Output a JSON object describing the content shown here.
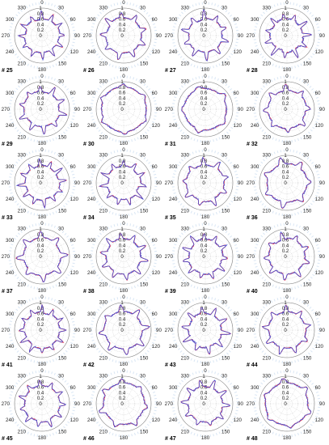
{
  "page": {
    "rows": 6,
    "cols": 4
  },
  "colors": {
    "series_1": "#e0304a",
    "series_2": "#3a4fd8",
    "grid": "#c8c8c8",
    "halo": "#c9dcef"
  },
  "chart_data": [
    {
      "type": "polar",
      "label": "# 25",
      "angle_ticks": [
        "0",
        "30",
        "60",
        "90",
        "120",
        "150",
        "180",
        "210",
        "240",
        "270",
        "300",
        "330"
      ],
      "r_ticks": [
        "1",
        "0.8",
        "0.6",
        "0.4",
        "0.2",
        "0"
      ],
      "rlim": [
        0,
        1
      ],
      "seed": 25,
      "lobes": 12,
      "base": 0.7,
      "amp": 0.24,
      "phase": 0.3
    },
    {
      "type": "polar",
      "label": "# 26",
      "angle_ticks": [
        "0",
        "30",
        "60",
        "90",
        "120",
        "150",
        "180",
        "210",
        "240",
        "270",
        "300",
        "330"
      ],
      "r_ticks": [
        "1",
        "0.8",
        "0.6",
        "0.4",
        "0.2",
        "0"
      ],
      "rlim": [
        0,
        1
      ],
      "seed": 26,
      "lobes": 9,
      "base": 0.72,
      "amp": 0.24,
      "phase": 1.1
    },
    {
      "type": "polar",
      "label": "# 27",
      "angle_ticks": [
        "0",
        "30",
        "60",
        "90",
        "120",
        "150",
        "180",
        "210",
        "240",
        "270",
        "300",
        "330"
      ],
      "r_ticks": [
        "1",
        "0.8",
        "0.6",
        "0.4",
        "0.2",
        "0"
      ],
      "rlim": [
        0,
        1
      ],
      "seed": 27,
      "lobes": 10,
      "base": 0.7,
      "amp": 0.26,
      "phase": 0.6
    },
    {
      "type": "polar",
      "label": "# 28",
      "angle_ticks": [
        "0",
        "30",
        "60",
        "90",
        "120",
        "150",
        "180",
        "210",
        "240",
        "270",
        "300",
        "330"
      ],
      "r_ticks": [
        "1",
        "0.8",
        "0.6",
        "0.4",
        "0.2",
        "0"
      ],
      "rlim": [
        0,
        1
      ],
      "seed": 28,
      "lobes": 11,
      "base": 0.68,
      "amp": 0.26,
      "phase": 2.0
    },
    {
      "type": "polar",
      "label": "# 29",
      "angle_ticks": [
        "0",
        "30",
        "60",
        "90",
        "120",
        "150",
        "180",
        "210",
        "240",
        "270",
        "300",
        "330"
      ],
      "r_ticks": [
        "1",
        "0.8",
        "0.6",
        "0.4",
        "0.2",
        "0"
      ],
      "rlim": [
        0,
        1
      ],
      "seed": 29,
      "lobes": 10,
      "base": 0.72,
      "amp": 0.22,
      "phase": 0.9
    },
    {
      "type": "polar",
      "label": "# 30",
      "angle_ticks": [
        "0",
        "30",
        "60",
        "90",
        "120",
        "150",
        "180",
        "210",
        "240",
        "270",
        "300",
        "330"
      ],
      "r_ticks": [
        "1",
        "0.8",
        "0.6",
        "0.4",
        "0.2",
        "0"
      ],
      "rlim": [
        0,
        1
      ],
      "seed": 30,
      "lobes": 6,
      "base": 0.85,
      "amp": 0.1,
      "phase": 0.2
    },
    {
      "type": "polar",
      "label": "# 31",
      "angle_ticks": [
        "0",
        "30",
        "60",
        "90",
        "120",
        "150",
        "180",
        "210",
        "240",
        "270",
        "300",
        "330"
      ],
      "r_ticks": [
        "1",
        "0.8",
        "0.6",
        "0.4",
        "0.2",
        "0"
      ],
      "rlim": [
        0,
        1
      ],
      "seed": 31,
      "lobes": 5,
      "base": 0.8,
      "amp": 0.14,
      "phase": 1.6
    },
    {
      "type": "polar",
      "label": "# 32",
      "angle_ticks": [
        "0",
        "30",
        "60",
        "90",
        "120",
        "150",
        "180",
        "210",
        "240",
        "270",
        "300",
        "330"
      ],
      "r_ticks": [
        "1",
        "0.8",
        "0.6",
        "0.4",
        "0.2",
        "0"
      ],
      "rlim": [
        0,
        1
      ],
      "seed": 32,
      "lobes": 8,
      "base": 0.75,
      "amp": 0.2,
      "phase": 0.4
    },
    {
      "type": "polar",
      "label": "# 33",
      "angle_ticks": [
        "0",
        "30",
        "60",
        "90",
        "120",
        "150",
        "180",
        "210",
        "240",
        "270",
        "300",
        "330"
      ],
      "r_ticks": [
        "1",
        "0.8",
        "0.6",
        "0.4",
        "0.2",
        "0"
      ],
      "rlim": [
        0,
        1
      ],
      "seed": 33,
      "lobes": 12,
      "base": 0.7,
      "amp": 0.24,
      "phase": 1.3
    },
    {
      "type": "polar",
      "label": "# 34",
      "angle_ticks": [
        "0",
        "30",
        "60",
        "90",
        "120",
        "150",
        "180",
        "210",
        "240",
        "270",
        "300",
        "330"
      ],
      "r_ticks": [
        "1",
        "0.8",
        "0.6",
        "0.4",
        "0.2",
        "0"
      ],
      "rlim": [
        0,
        1
      ],
      "seed": 34,
      "lobes": 11,
      "base": 0.68,
      "amp": 0.26,
      "phase": 0.1
    },
    {
      "type": "polar",
      "label": "# 35",
      "angle_ticks": [
        "0",
        "30",
        "60",
        "90",
        "120",
        "150",
        "180",
        "210",
        "240",
        "270",
        "300",
        "330"
      ],
      "r_ticks": [
        "1",
        "0.8",
        "0.6",
        "0.4",
        "0.2",
        "0"
      ],
      "rlim": [
        0,
        1
      ],
      "seed": 35,
      "lobes": 9,
      "base": 0.74,
      "amp": 0.2,
      "phase": 0.8
    },
    {
      "type": "polar",
      "label": "# 36",
      "angle_ticks": [
        "0",
        "30",
        "60",
        "90",
        "120",
        "150",
        "180",
        "210",
        "240",
        "270",
        "300",
        "330"
      ],
      "r_ticks": [
        "1",
        "0.8",
        "0.6",
        "0.4",
        "0.2",
        "0"
      ],
      "rlim": [
        0,
        1
      ],
      "seed": 36,
      "lobes": 7,
      "base": 0.78,
      "amp": 0.18,
      "phase": 1.9
    },
    {
      "type": "polar",
      "label": "# 37",
      "angle_ticks": [
        "0",
        "30",
        "60",
        "90",
        "120",
        "150",
        "180",
        "210",
        "240",
        "270",
        "300",
        "330"
      ],
      "r_ticks": [
        "1",
        "0.8",
        "0.6",
        "0.4",
        "0.2",
        "0"
      ],
      "rlim": [
        0,
        1
      ],
      "seed": 37,
      "lobes": 8,
      "base": 0.76,
      "amp": 0.2,
      "phase": 0.5
    },
    {
      "type": "polar",
      "label": "# 38",
      "angle_ticks": [
        "0",
        "30",
        "60",
        "90",
        "120",
        "150",
        "180",
        "210",
        "240",
        "270",
        "300",
        "330"
      ],
      "r_ticks": [
        "1",
        "0.8",
        "0.6",
        "0.4",
        "0.2",
        "0"
      ],
      "rlim": [
        0,
        1
      ],
      "seed": 38,
      "lobes": 10,
      "base": 0.72,
      "amp": 0.22,
      "phase": 1.4
    },
    {
      "type": "polar",
      "label": "# 39",
      "angle_ticks": [
        "0",
        "30",
        "60",
        "90",
        "120",
        "150",
        "180",
        "210",
        "240",
        "270",
        "300",
        "330"
      ],
      "r_ticks": [
        "1",
        "0.8",
        "0.6",
        "0.4",
        "0.2",
        "0"
      ],
      "rlim": [
        0,
        1
      ],
      "seed": 39,
      "lobes": 11,
      "base": 0.7,
      "amp": 0.24,
      "phase": 0.7
    },
    {
      "type": "polar",
      "label": "# 40",
      "angle_ticks": [
        "0",
        "30",
        "60",
        "90",
        "120",
        "150",
        "180",
        "210",
        "240",
        "270",
        "300",
        "330"
      ],
      "r_ticks": [
        "1",
        "0.8",
        "0.6",
        "0.4",
        "0.2",
        "0"
      ],
      "rlim": [
        0,
        1
      ],
      "seed": 40,
      "lobes": 9,
      "base": 0.72,
      "amp": 0.22,
      "phase": 2.2
    },
    {
      "type": "polar",
      "label": "# 41",
      "angle_ticks": [
        "0",
        "30",
        "60",
        "90",
        "120",
        "150",
        "180",
        "210",
        "240",
        "270",
        "300",
        "330"
      ],
      "r_ticks": [
        "1",
        "0.8",
        "0.6",
        "0.4",
        "0.2",
        "0"
      ],
      "rlim": [
        0,
        1
      ],
      "seed": 41,
      "lobes": 12,
      "base": 0.72,
      "amp": 0.22,
      "phase": 0.0
    },
    {
      "type": "polar",
      "label": "# 42",
      "angle_ticks": [
        "0",
        "30",
        "60",
        "90",
        "120",
        "150",
        "180",
        "210",
        "240",
        "270",
        "300",
        "330"
      ],
      "r_ticks": [
        "1",
        "0.8",
        "0.6",
        "0.4",
        "0.2",
        "0"
      ],
      "rlim": [
        0,
        1
      ],
      "seed": 42,
      "lobes": 8,
      "base": 0.76,
      "amp": 0.2,
      "phase": 1.0
    },
    {
      "type": "polar",
      "label": "# 43",
      "angle_ticks": [
        "0",
        "30",
        "60",
        "90",
        "120",
        "150",
        "180",
        "210",
        "240",
        "270",
        "300",
        "330"
      ],
      "r_ticks": [
        "1",
        "0.8",
        "0.6",
        "0.4",
        "0.2",
        "0"
      ],
      "rlim": [
        0,
        1
      ],
      "seed": 43,
      "lobes": 10,
      "base": 0.7,
      "amp": 0.24,
      "phase": 1.7
    },
    {
      "type": "polar",
      "label": "# 44",
      "angle_ticks": [
        "0",
        "30",
        "60",
        "90",
        "120",
        "150",
        "180",
        "210",
        "240",
        "270",
        "300",
        "330"
      ],
      "r_ticks": [
        "1",
        "0.8",
        "0.6",
        "0.4",
        "0.2",
        "0"
      ],
      "rlim": [
        0,
        1
      ],
      "seed": 44,
      "lobes": 9,
      "base": 0.74,
      "amp": 0.2,
      "phase": 0.35
    },
    {
      "type": "polar",
      "label": "# 45",
      "angle_ticks": [
        "0",
        "30",
        "60",
        "90",
        "120",
        "150",
        "180",
        "210",
        "240",
        "270",
        "300",
        "330"
      ],
      "r_ticks": [
        "1",
        "0.8",
        "0.6",
        "0.4",
        "0.2",
        "0"
      ],
      "rlim": [
        0,
        1
      ],
      "seed": 45,
      "lobes": 11,
      "base": 0.72,
      "amp": 0.22,
      "phase": 1.2
    },
    {
      "type": "polar",
      "label": "# 46",
      "angle_ticks": [
        "0",
        "30",
        "60",
        "90",
        "120",
        "150",
        "180",
        "210",
        "240",
        "270",
        "300",
        "330"
      ],
      "r_ticks": [
        "1",
        "0.8",
        "0.6",
        "0.4",
        "0.2",
        "0"
      ],
      "rlim": [
        0,
        1
      ],
      "seed": 46,
      "lobes": 7,
      "base": 0.8,
      "amp": 0.16,
      "phase": 0.6
    },
    {
      "type": "polar",
      "label": "# 47",
      "angle_ticks": [
        "0",
        "30",
        "60",
        "90",
        "120",
        "150",
        "180",
        "210",
        "240",
        "270",
        "300",
        "330"
      ],
      "r_ticks": [
        "1",
        "0.8",
        "0.6",
        "0.4",
        "0.2",
        "0"
      ],
      "rlim": [
        0,
        1
      ],
      "seed": 47,
      "lobes": 10,
      "base": 0.72,
      "amp": 0.22,
      "phase": 2.4
    },
    {
      "type": "polar",
      "label": "# 48",
      "angle_ticks": [
        "0",
        "30",
        "60",
        "90",
        "120",
        "150",
        "180",
        "210",
        "240",
        "270",
        "300",
        "330"
      ],
      "r_ticks": [
        "1",
        "0.8",
        "0.6",
        "0.4",
        "0.2",
        "0"
      ],
      "rlim": [
        0,
        1
      ],
      "seed": 48,
      "lobes": 6,
      "base": 0.82,
      "amp": 0.14,
      "phase": 0.9
    }
  ]
}
